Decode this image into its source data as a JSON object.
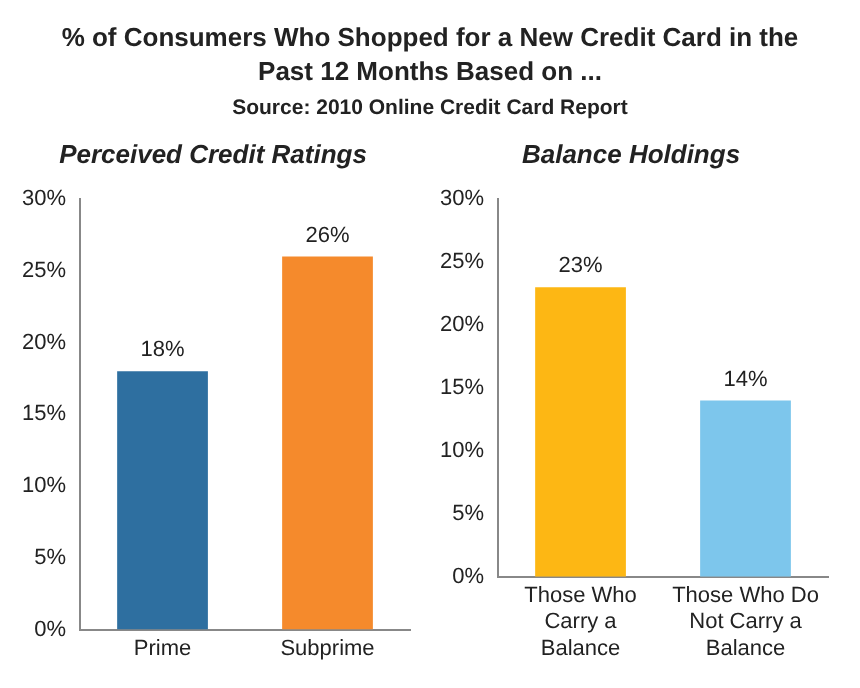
{
  "chart_data": [
    {
      "type": "other",
      "title": "% of Consumers Who Shopped for a New Credit Card in the Past 12 Months Based on ...",
      "annotations": [
        "Source: 2010 Online Credit Card Report"
      ]
    },
    {
      "type": "bar",
      "title": "Perceived Credit Ratings",
      "categories": [
        "Prime",
        "Subprime"
      ],
      "values": [
        18,
        26
      ],
      "colors": [
        "#2e6fa0",
        "#f58a2c"
      ],
      "value_labels": [
        "18%",
        "26%"
      ],
      "ylim": [
        0,
        30
      ],
      "yticks": [
        {
          "value": 0,
          "label": "0%"
        },
        {
          "value": 5,
          "label": "5%"
        },
        {
          "value": 10,
          "label": "10%"
        },
        {
          "value": 15,
          "label": "15%"
        },
        {
          "value": 20,
          "label": "20%"
        },
        {
          "value": 25,
          "label": "25%"
        },
        {
          "value": 30,
          "label": "30%"
        }
      ],
      "grid": false,
      "legend": false
    },
    {
      "type": "bar",
      "title": "Balance Holdings",
      "categories": [
        "Those Who Carry a Balance",
        "Those Who Do Not Carry a Balance"
      ],
      "values": [
        23,
        14
      ],
      "colors": [
        "#fdb714",
        "#7dc6ec"
      ],
      "value_labels": [
        "23%",
        "14%"
      ],
      "ylim": [
        0,
        30
      ],
      "yticks": [
        {
          "value": 0,
          "label": "0%"
        },
        {
          "value": 5,
          "label": "5%"
        },
        {
          "value": 10,
          "label": "10%"
        },
        {
          "value": 15,
          "label": "15%"
        },
        {
          "value": 20,
          "label": "20%"
        },
        {
          "value": 25,
          "label": "25%"
        },
        {
          "value": 30,
          "label": "30%"
        }
      ],
      "grid": false,
      "legend": false
    }
  ]
}
